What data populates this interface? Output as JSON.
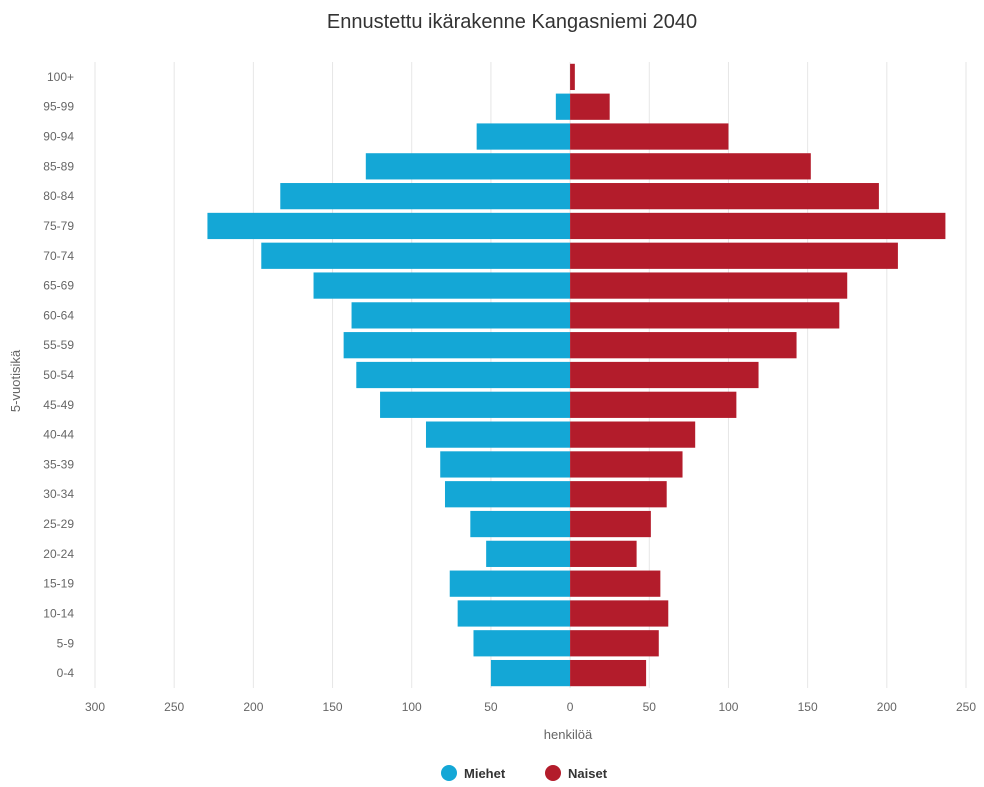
{
  "chart_data": {
    "type": "bar",
    "orientation": "horizontal",
    "layout": "population-pyramid",
    "title": "Ennustettu ikärakenne Kangasniemi 2040",
    "ylabel": "5-vuotisikä",
    "xlabel": "henkilöä",
    "categories": [
      "0-4",
      "5-9",
      "10-14",
      "15-19",
      "20-24",
      "25-29",
      "30-34",
      "35-39",
      "40-44",
      "45-49",
      "50-54",
      "55-59",
      "60-64",
      "65-69",
      "70-74",
      "75-79",
      "80-84",
      "85-89",
      "90-94",
      "95-99",
      "100+"
    ],
    "series": [
      {
        "name": "Miehet",
        "color": "#14a7d6",
        "side": "left",
        "values": [
          50,
          61,
          71,
          76,
          53,
          63,
          79,
          82,
          91,
          120,
          135,
          143,
          138,
          162,
          195,
          229,
          183,
          129,
          59,
          9,
          0
        ]
      },
      {
        "name": "Naiset",
        "color": "#b31c2b",
        "side": "right",
        "values": [
          48,
          56,
          62,
          57,
          42,
          51,
          61,
          71,
          79,
          105,
          119,
          143,
          170,
          175,
          207,
          237,
          195,
          152,
          100,
          25,
          3
        ]
      }
    ],
    "xlim": [
      -300,
      250
    ],
    "xticks": [
      -300,
      -250,
      -200,
      -150,
      -100,
      -50,
      0,
      50,
      100,
      150,
      200,
      250
    ],
    "xtick_labels": [
      "300",
      "250",
      "200",
      "150",
      "100",
      "50",
      "0",
      "50",
      "100",
      "150",
      "200",
      "250"
    ],
    "grid": "vertical",
    "legend": "bottom-center"
  }
}
